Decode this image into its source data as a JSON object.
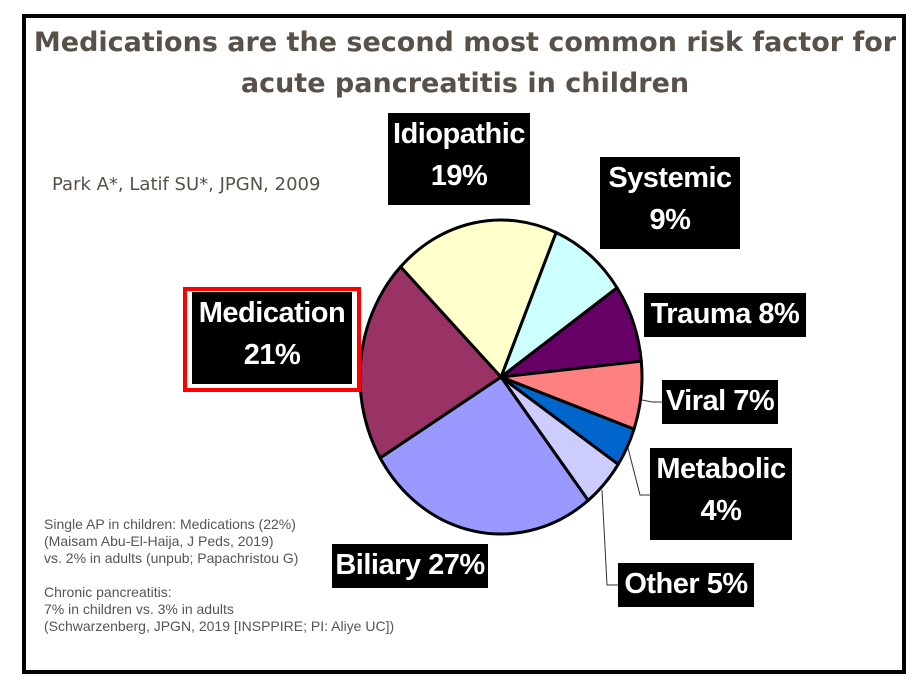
{
  "title_lines": [
    "Medications are the second most common risk factor for",
    "acute pancreatitis in children"
  ],
  "citation": "Park A*, Latif SU*, JPGN, 2009",
  "chart_data": {
    "type": "pie",
    "title": "Medications are the second most common risk factor for acute pancreatitis in children",
    "start_angle_deg": 23,
    "slices": [
      {
        "name": "Systemic",
        "label": "Systemic",
        "value_label": "9%",
        "value": 9,
        "color": "#ccffff"
      },
      {
        "name": "Trauma",
        "label": "Trauma 8%",
        "value": 8,
        "color": "#660066"
      },
      {
        "name": "Viral",
        "label": "Viral 7%",
        "value": 7,
        "color": "#ff8080"
      },
      {
        "name": "Metabolic",
        "label": "Metabolic",
        "value_label": "4%",
        "value": 4,
        "color": "#0066cc"
      },
      {
        "name": "Other",
        "label": "Other 5%",
        "value": 5,
        "color": "#ccccff"
      },
      {
        "name": "Biliary",
        "label": "Biliary 27%",
        "value": 27,
        "color": "#9999ff"
      },
      {
        "name": "Medication",
        "label": "Medication",
        "value_label": "21%",
        "value": 21,
        "color": "#993366",
        "highlighted": true,
        "highlight_color": "#ff0000"
      },
      {
        "name": "Idiopathic",
        "label": "Idiopathic",
        "value_label": "19%",
        "value": 19,
        "color": "#ffffcc"
      }
    ]
  },
  "notes": [
    "Single AP in children: Medications (22%)",
    "(Maisam Abu-El-Haija, J Peds, 2019)",
    "vs. 2% in adults (unpub; Papachristou G)",
    "",
    "Chronic pancreatitis:",
    "7% in children vs. 3% in adults",
    "(Schwarzenberg, JPGN, 2019 [INSPPIRE; PI: Aliye UC])"
  ]
}
